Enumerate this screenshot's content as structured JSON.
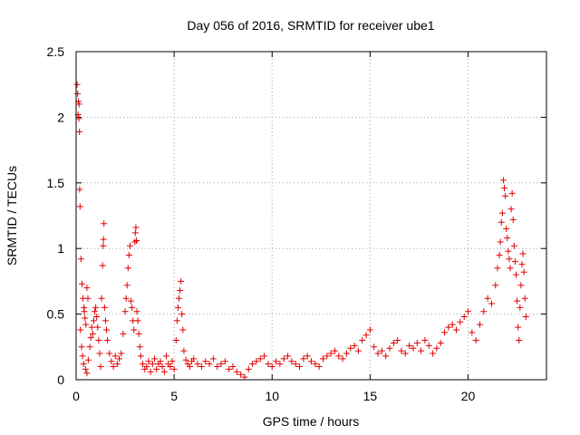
{
  "chart_data": {
    "type": "scatter",
    "title": "Day 056 of 2016, SRMTID for receiver ube1",
    "xlabel": "GPS time / hours",
    "ylabel": "SRMTID / TECUs",
    "xlim": [
      0,
      24
    ],
    "ylim": [
      0,
      2.5
    ],
    "xticks": [
      0,
      5,
      10,
      15,
      20
    ],
    "xtick_labels": [
      "0",
      "5",
      "10",
      "15",
      "20"
    ],
    "yticks": [
      0,
      0.5,
      1,
      1.5,
      2,
      2.5
    ],
    "ytick_labels": [
      "0",
      "0.5",
      "1",
      "1.5",
      "2",
      "2.5"
    ],
    "grid": true,
    "marker": "+",
    "marker_color": "#e00000",
    "series": [
      {
        "name": "SRMTID",
        "points": [
          [
            0.05,
            2.25
          ],
          [
            0.08,
            2.18
          ],
          [
            0.12,
            2.12
          ],
          [
            0.15,
            2.1
          ],
          [
            0.1,
            2.02
          ],
          [
            0.14,
            1.99
          ],
          [
            0.17,
            1.89
          ],
          [
            0.18,
            1.45
          ],
          [
            0.2,
            1.32
          ],
          [
            0.25,
            0.92
          ],
          [
            0.3,
            0.73
          ],
          [
            0.35,
            0.62
          ],
          [
            0.4,
            0.55
          ],
          [
            0.42,
            0.52
          ],
          [
            0.45,
            0.47
          ],
          [
            0.5,
            0.42
          ],
          [
            0.55,
            0.7
          ],
          [
            0.6,
            0.62
          ],
          [
            0.22,
            0.38
          ],
          [
            0.28,
            0.25
          ],
          [
            0.33,
            0.18
          ],
          [
            0.38,
            0.12
          ],
          [
            0.48,
            0.08
          ],
          [
            0.55,
            0.05
          ],
          [
            0.62,
            0.15
          ],
          [
            0.7,
            0.25
          ],
          [
            0.75,
            0.32
          ],
          [
            0.8,
            0.4
          ],
          [
            0.85,
            0.35
          ],
          [
            0.9,
            0.45
          ],
          [
            0.95,
            0.52
          ],
          [
            1.0,
            0.55
          ],
          [
            1.05,
            0.48
          ],
          [
            1.1,
            0.4
          ],
          [
            1.15,
            0.3
          ],
          [
            1.2,
            0.2
          ],
          [
            1.25,
            0.1
          ],
          [
            1.3,
            0.62
          ],
          [
            1.35,
            0.87
          ],
          [
            1.38,
            1.02
          ],
          [
            1.4,
            1.07
          ],
          [
            1.42,
            1.19
          ],
          [
            1.45,
            0.55
          ],
          [
            1.5,
            0.45
          ],
          [
            1.55,
            0.38
          ],
          [
            1.6,
            0.3
          ],
          [
            1.7,
            0.2
          ],
          [
            1.8,
            0.14
          ],
          [
            1.9,
            0.1
          ],
          [
            2.0,
            0.18
          ],
          [
            2.1,
            0.12
          ],
          [
            2.2,
            0.16
          ],
          [
            2.3,
            0.2
          ],
          [
            2.4,
            0.35
          ],
          [
            2.5,
            0.52
          ],
          [
            2.55,
            0.62
          ],
          [
            2.6,
            0.72
          ],
          [
            2.65,
            0.85
          ],
          [
            2.7,
            0.95
          ],
          [
            2.75,
            1.02
          ],
          [
            2.8,
            0.6
          ],
          [
            2.85,
            0.55
          ],
          [
            2.9,
            0.45
          ],
          [
            2.95,
            0.38
          ],
          [
            3.0,
            1.05
          ],
          [
            3.02,
            1.12
          ],
          [
            3.05,
            1.16
          ],
          [
            3.08,
            1.06
          ],
          [
            3.1,
            0.52
          ],
          [
            3.15,
            0.45
          ],
          [
            3.2,
            0.35
          ],
          [
            3.25,
            0.25
          ],
          [
            3.3,
            0.18
          ],
          [
            3.4,
            0.12
          ],
          [
            3.5,
            0.08
          ],
          [
            3.6,
            0.1
          ],
          [
            3.7,
            0.14
          ],
          [
            3.8,
            0.06
          ],
          [
            3.9,
            0.12
          ],
          [
            4.0,
            0.16
          ],
          [
            4.1,
            0.08
          ],
          [
            4.2,
            0.12
          ],
          [
            4.3,
            0.14
          ],
          [
            4.4,
            0.1
          ],
          [
            4.5,
            0.06
          ],
          [
            4.6,
            0.18
          ],
          [
            4.7,
            0.12
          ],
          [
            4.8,
            0.1
          ],
          [
            4.9,
            0.14
          ],
          [
            5.0,
            0.08
          ],
          [
            5.1,
            0.3
          ],
          [
            5.15,
            0.45
          ],
          [
            5.2,
            0.55
          ],
          [
            5.25,
            0.62
          ],
          [
            5.3,
            0.68
          ],
          [
            5.35,
            0.75
          ],
          [
            5.4,
            0.5
          ],
          [
            5.45,
            0.38
          ],
          [
            5.5,
            0.22
          ],
          [
            5.6,
            0.15
          ],
          [
            5.7,
            0.12
          ],
          [
            5.8,
            0.1
          ],
          [
            5.9,
            0.14
          ],
          [
            6.0,
            0.16
          ],
          [
            6.2,
            0.12
          ],
          [
            6.4,
            0.1
          ],
          [
            6.6,
            0.14
          ],
          [
            6.8,
            0.12
          ],
          [
            7.0,
            0.16
          ],
          [
            7.2,
            0.1
          ],
          [
            7.4,
            0.12
          ],
          [
            7.6,
            0.14
          ],
          [
            7.8,
            0.08
          ],
          [
            8.0,
            0.1
          ],
          [
            8.2,
            0.06
          ],
          [
            8.4,
            0.04
          ],
          [
            8.6,
            0.02
          ],
          [
            8.8,
            0.08
          ],
          [
            9.0,
            0.12
          ],
          [
            9.2,
            0.14
          ],
          [
            9.4,
            0.16
          ],
          [
            9.6,
            0.18
          ],
          [
            9.8,
            0.12
          ],
          [
            10.0,
            0.1
          ],
          [
            10.2,
            0.14
          ],
          [
            10.4,
            0.12
          ],
          [
            10.6,
            0.16
          ],
          [
            10.8,
            0.18
          ],
          [
            11.0,
            0.14
          ],
          [
            11.2,
            0.12
          ],
          [
            11.4,
            0.1
          ],
          [
            11.6,
            0.16
          ],
          [
            11.8,
            0.18
          ],
          [
            12.0,
            0.14
          ],
          [
            12.2,
            0.12
          ],
          [
            12.4,
            0.1
          ],
          [
            12.6,
            0.16
          ],
          [
            12.8,
            0.18
          ],
          [
            13.0,
            0.2
          ],
          [
            13.2,
            0.22
          ],
          [
            13.4,
            0.18
          ],
          [
            13.6,
            0.16
          ],
          [
            13.8,
            0.2
          ],
          [
            14.0,
            0.24
          ],
          [
            14.2,
            0.26
          ],
          [
            14.4,
            0.22
          ],
          [
            14.6,
            0.3
          ],
          [
            14.8,
            0.34
          ],
          [
            15.0,
            0.38
          ],
          [
            15.2,
            0.25
          ],
          [
            15.4,
            0.2
          ],
          [
            15.6,
            0.22
          ],
          [
            15.8,
            0.18
          ],
          [
            16.0,
            0.24
          ],
          [
            16.2,
            0.28
          ],
          [
            16.4,
            0.3
          ],
          [
            16.6,
            0.22
          ],
          [
            16.8,
            0.2
          ],
          [
            17.0,
            0.26
          ],
          [
            17.2,
            0.24
          ],
          [
            17.4,
            0.28
          ],
          [
            17.6,
            0.22
          ],
          [
            17.8,
            0.3
          ],
          [
            18.0,
            0.26
          ],
          [
            18.2,
            0.2
          ],
          [
            18.4,
            0.24
          ],
          [
            18.6,
            0.28
          ],
          [
            18.8,
            0.36
          ],
          [
            19.0,
            0.4
          ],
          [
            19.2,
            0.42
          ],
          [
            19.4,
            0.38
          ],
          [
            19.6,
            0.44
          ],
          [
            19.8,
            0.48
          ],
          [
            20.0,
            0.52
          ],
          [
            20.2,
            0.36
          ],
          [
            20.4,
            0.3
          ],
          [
            20.6,
            0.42
          ],
          [
            20.8,
            0.52
          ],
          [
            21.0,
            0.62
          ],
          [
            21.2,
            0.58
          ],
          [
            21.4,
            0.72
          ],
          [
            21.5,
            0.85
          ],
          [
            21.6,
            0.95
          ],
          [
            21.65,
            1.05
          ],
          [
            21.7,
            1.2
          ],
          [
            21.75,
            1.27
          ],
          [
            21.8,
            1.52
          ],
          [
            21.85,
            1.46
          ],
          [
            21.9,
            1.4
          ],
          [
            21.95,
            1.15
          ],
          [
            22.0,
            1.08
          ],
          [
            22.05,
            0.98
          ],
          [
            22.1,
            0.92
          ],
          [
            22.15,
            0.85
          ],
          [
            22.2,
            1.3
          ],
          [
            22.25,
            1.42
          ],
          [
            22.3,
            1.22
          ],
          [
            22.35,
            1.02
          ],
          [
            22.4,
            0.9
          ],
          [
            22.45,
            0.8
          ],
          [
            22.5,
            0.6
          ],
          [
            22.55,
            0.4
          ],
          [
            22.6,
            0.3
          ],
          [
            22.65,
            0.55
          ],
          [
            22.7,
            0.72
          ],
          [
            22.75,
            0.88
          ],
          [
            22.8,
            0.96
          ],
          [
            22.85,
            0.82
          ],
          [
            22.9,
            0.62
          ],
          [
            22.95,
            0.48
          ]
        ]
      }
    ]
  }
}
